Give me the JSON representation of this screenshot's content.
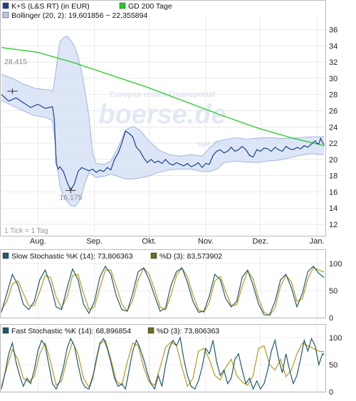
{
  "legend": {
    "price_label": "K+S (L&S RT) (in EUR)",
    "gd200_label": "GD 200 Tage",
    "bollinger_label": "Bollinger (20, 2): 19,601856 − 22,355894",
    "slow_k_label": "Slow Stochastic %K (14): 73,806363",
    "slow_d_label": "%D (3): 83,573902",
    "fast_k_label": "Fast Stochastic %K (14): 68,896854",
    "fast_d_label": "%D (3): 73,806363"
  },
  "annotations": {
    "tick_note": "1 Tick = 1 Tag",
    "high_label": "28,415",
    "low_label": "16,175"
  },
  "watermark": {
    "line1": "Europas erstes Finanzportal",
    "brand": "boerse.de",
    "line3": "seit 1994"
  },
  "colors": {
    "price": "#1f3f8f",
    "gd200": "#22cc22",
    "band_fill": "#d6e2f6",
    "band_line": "#8fa6d6",
    "stoch_k": "#1e5a6e",
    "stoch_d": "#b89a1e",
    "grid": "#dddddd"
  },
  "chart_data": [
    {
      "type": "line",
      "title": "K+S (L&S RT) (in EUR)",
      "x_tick_labels": [
        "Aug.",
        "Sep.",
        "Okt.",
        "Nov.",
        "Dez.",
        "Jan."
      ],
      "x_tick_days": [
        20,
        51,
        81,
        112,
        142,
        173
      ],
      "y_ticks": [
        12,
        14,
        16,
        18,
        20,
        22,
        24,
        26,
        28,
        30,
        32,
        34,
        36
      ],
      "ylim": [
        10.5,
        37.2
      ],
      "xlim": [
        0,
        178
      ],
      "y_axis_side": "right",
      "series": [
        {
          "name": "K+S (L&S RT) (in EUR)",
          "x": [
            0,
            4,
            8,
            12,
            16,
            20,
            24,
            28,
            29,
            30,
            31,
            32,
            34,
            36,
            38,
            40,
            42,
            44,
            46,
            48,
            50,
            52,
            54,
            56,
            58,
            60,
            62,
            64,
            66,
            68,
            70,
            72,
            74,
            76,
            78,
            80,
            82,
            84,
            86,
            88,
            90,
            92,
            94,
            96,
            98,
            100,
            102,
            104,
            106,
            108,
            110,
            112,
            114,
            116,
            118,
            120,
            122,
            124,
            126,
            128,
            130,
            132,
            134,
            136,
            138,
            140,
            142,
            144,
            146,
            148,
            150,
            152,
            154,
            156,
            158,
            160,
            162,
            164,
            166,
            168,
            170,
            172,
            173,
            174,
            175,
            176,
            177
          ],
          "y": [
            28.0,
            27.2,
            27.6,
            27.0,
            26.4,
            26.8,
            26.3,
            26.5,
            25.0,
            19.5,
            18.8,
            19.1,
            18.5,
            17.2,
            16.2,
            17.0,
            18.5,
            19.0,
            18.8,
            18.6,
            18.8,
            18.4,
            18.7,
            18.5,
            19.0,
            18.7,
            20.0,
            20.8,
            22.0,
            23.5,
            23.2,
            22.8,
            21.5,
            21.0,
            20.2,
            19.6,
            20.0,
            19.6,
            19.8,
            19.5,
            20.0,
            19.5,
            19.3,
            19.6,
            19.4,
            19.2,
            19.5,
            19.1,
            19.3,
            19.6,
            19.0,
            19.5,
            19.4,
            20.5,
            21.0,
            21.2,
            20.8,
            21.0,
            21.5,
            21.0,
            21.2,
            21.6,
            21.2,
            20.5,
            20.3,
            21.2,
            21.0,
            21.4,
            21.3,
            21.0,
            21.5,
            21.2,
            21.0,
            21.6,
            21.3,
            21.2,
            21.5,
            21.3,
            21.7,
            21.5,
            21.9,
            22.3,
            22.0,
            21.9,
            22.6,
            22.1,
            21.8
          ]
        },
        {
          "name": "GD 200 Tage",
          "x": [
            0,
            20,
            40,
            60,
            80,
            100,
            120,
            140,
            160,
            177
          ],
          "y": [
            33.8,
            33.2,
            31.9,
            30.4,
            28.9,
            27.2,
            25.5,
            23.9,
            22.6,
            21.7
          ]
        }
      ],
      "bollinger": {
        "name": "Bollinger (20, 2)",
        "x": [
          0,
          6,
          12,
          18,
          24,
          26,
          28,
          29,
          30,
          31,
          32,
          34,
          36,
          38,
          40,
          42,
          44,
          46,
          48,
          50,
          52,
          56,
          60,
          64,
          68,
          72,
          76,
          80,
          86,
          92,
          98,
          104,
          110,
          114,
          118,
          122,
          128,
          134,
          140,
          146,
          152,
          158,
          164,
          170,
          174,
          177
        ],
        "upper": [
          30.5,
          30.0,
          29.3,
          28.8,
          28.6,
          28.6,
          28.4,
          29.5,
          31.2,
          33.0,
          34.5,
          35.0,
          35.2,
          34.7,
          34.0,
          32.7,
          30.8,
          28.3,
          25.3,
          20.8,
          19.5,
          19.4,
          19.8,
          21.5,
          23.6,
          24.1,
          23.6,
          22.5,
          21.2,
          20.6,
          20.4,
          20.6,
          20.4,
          21.4,
          22.2,
          22.4,
          22.7,
          22.5,
          22.6,
          22.7,
          22.6,
          22.6,
          22.7,
          22.8,
          22.8,
          22.8
        ],
        "lower": [
          27.3,
          26.6,
          26.0,
          25.4,
          25.2,
          25.0,
          24.8,
          23.0,
          20.5,
          18.5,
          16.8,
          15.4,
          14.8,
          14.3,
          14.2,
          14.6,
          15.6,
          17.2,
          18.4,
          18.1,
          17.8,
          17.9,
          18.2,
          17.9,
          17.6,
          17.6,
          17.7,
          17.9,
          18.4,
          18.7,
          18.8,
          18.8,
          18.5,
          18.5,
          18.8,
          19.6,
          19.8,
          19.7,
          19.6,
          19.8,
          19.9,
          20.2,
          20.5,
          20.7,
          20.6,
          20.6
        ]
      }
    },
    {
      "type": "line",
      "title": "Slow Stochastic",
      "y_ticks": [
        0,
        50,
        100
      ],
      "ylim": [
        0,
        100
      ],
      "xlim": [
        0,
        178
      ],
      "series": [
        {
          "name": "Slow Stochastic %K (14)",
          "x": [
            0,
            3,
            6,
            9,
            12,
            15,
            18,
            21,
            24,
            27,
            30,
            33,
            36,
            39,
            42,
            45,
            48,
            51,
            54,
            57,
            60,
            63,
            66,
            69,
            72,
            75,
            78,
            81,
            84,
            87,
            90,
            93,
            96,
            99,
            102,
            105,
            108,
            111,
            114,
            117,
            120,
            123,
            126,
            129,
            132,
            135,
            138,
            141,
            144,
            147,
            150,
            153,
            156,
            159,
            162,
            165,
            168,
            171,
            174,
            177
          ],
          "y": [
            10,
            45,
            80,
            60,
            25,
            15,
            30,
            70,
            88,
            60,
            20,
            15,
            55,
            90,
            70,
            25,
            8,
            30,
            75,
            95,
            80,
            40,
            15,
            12,
            45,
            85,
            92,
            70,
            40,
            12,
            18,
            60,
            85,
            92,
            65,
            30,
            10,
            12,
            40,
            80,
            70,
            35,
            20,
            30,
            75,
            88,
            60,
            25,
            5,
            5,
            30,
            70,
            80,
            55,
            20,
            45,
            85,
            95,
            82,
            74
          ]
        },
        {
          "name": "%D (3)",
          "x": [
            0,
            3,
            6,
            9,
            12,
            15,
            18,
            21,
            24,
            27,
            30,
            33,
            36,
            39,
            42,
            45,
            48,
            51,
            54,
            57,
            60,
            63,
            66,
            69,
            72,
            75,
            78,
            81,
            84,
            87,
            90,
            93,
            96,
            99,
            102,
            105,
            108,
            111,
            114,
            117,
            120,
            123,
            126,
            129,
            132,
            135,
            138,
            141,
            144,
            147,
            150,
            153,
            156,
            159,
            162,
            165,
            168,
            171,
            174,
            177
          ],
          "y": [
            15,
            30,
            62,
            68,
            45,
            22,
            22,
            48,
            78,
            74,
            38,
            18,
            38,
            78,
            80,
            45,
            15,
            20,
            55,
            88,
            88,
            58,
            25,
            12,
            32,
            70,
            92,
            80,
            52,
            20,
            14,
            42,
            78,
            92,
            75,
            42,
            15,
            10,
            28,
            68,
            76,
            48,
            22,
            24,
            58,
            86,
            72,
            35,
            10,
            4,
            18,
            58,
            78,
            66,
            30,
            35,
            72,
            92,
            88,
            84
          ]
        }
      ]
    },
    {
      "type": "line",
      "title": "Fast Stochastic",
      "y_ticks": [
        0,
        50,
        100
      ],
      "ylim": [
        0,
        100
      ],
      "xlim": [
        0,
        178
      ],
      "series": [
        {
          "name": "Fast Stochastic %K (14)",
          "x": [
            0,
            2,
            4,
            6,
            8,
            10,
            12,
            14,
            16,
            18,
            20,
            22,
            24,
            26,
            28,
            30,
            32,
            34,
            36,
            38,
            40,
            42,
            44,
            46,
            48,
            50,
            52,
            54,
            56,
            58,
            60,
            62,
            64,
            66,
            68,
            70,
            72,
            74,
            76,
            78,
            80,
            82,
            84,
            86,
            88,
            90,
            92,
            94,
            96,
            98,
            100,
            102,
            104,
            106,
            108,
            110,
            112,
            114,
            116,
            118,
            120,
            122,
            124,
            126,
            128,
            130,
            132,
            134,
            136,
            138,
            140,
            142,
            144,
            146,
            148,
            150,
            152,
            154,
            156,
            158,
            160,
            162,
            164,
            166,
            168,
            170,
            172,
            174,
            176,
            177
          ],
          "y": [
            5,
            35,
            70,
            90,
            55,
            30,
            10,
            25,
            15,
            40,
            75,
            95,
            85,
            50,
            15,
            5,
            20,
            45,
            80,
            98,
            85,
            50,
            20,
            8,
            5,
            25,
            60,
            90,
            98,
            80,
            55,
            25,
            10,
            15,
            5,
            40,
            75,
            95,
            80,
            60,
            35,
            15,
            5,
            30,
            10,
            50,
            80,
            95,
            85,
            100,
            60,
            30,
            10,
            5,
            20,
            45,
            80,
            70,
            95,
            55,
            30,
            40,
            15,
            25,
            60,
            70,
            40,
            15,
            25,
            5,
            20,
            5,
            15,
            40,
            75,
            95,
            60,
            35,
            70,
            40,
            15,
            30,
            60,
            95,
            75,
            98,
            85,
            50,
            70,
            69
          ]
        },
        {
          "name": "%D (3)",
          "x": [
            0,
            3,
            6,
            9,
            12,
            15,
            18,
            21,
            24,
            27,
            30,
            33,
            36,
            39,
            42,
            45,
            48,
            51,
            54,
            57,
            60,
            63,
            66,
            69,
            72,
            75,
            78,
            81,
            84,
            87,
            90,
            93,
            96,
            99,
            102,
            105,
            108,
            111,
            114,
            117,
            120,
            123,
            126,
            129,
            132,
            135,
            138,
            141,
            144,
            147,
            150,
            153,
            156,
            159,
            162,
            165,
            168,
            171,
            174,
            177
          ],
          "y": [
            10,
            45,
            78,
            60,
            25,
            18,
            28,
            70,
            90,
            55,
            12,
            20,
            60,
            92,
            70,
            25,
            8,
            40,
            88,
            95,
            60,
            20,
            12,
            55,
            90,
            85,
            45,
            18,
            12,
            45,
            82,
            92,
            85,
            45,
            10,
            25,
            75,
            80,
            60,
            30,
            22,
            45,
            60,
            30,
            18,
            12,
            30,
            80,
            85,
            50,
            40,
            60,
            28,
            40,
            70,
            90,
            85,
            80,
            75,
            74
          ]
        }
      ]
    }
  ]
}
